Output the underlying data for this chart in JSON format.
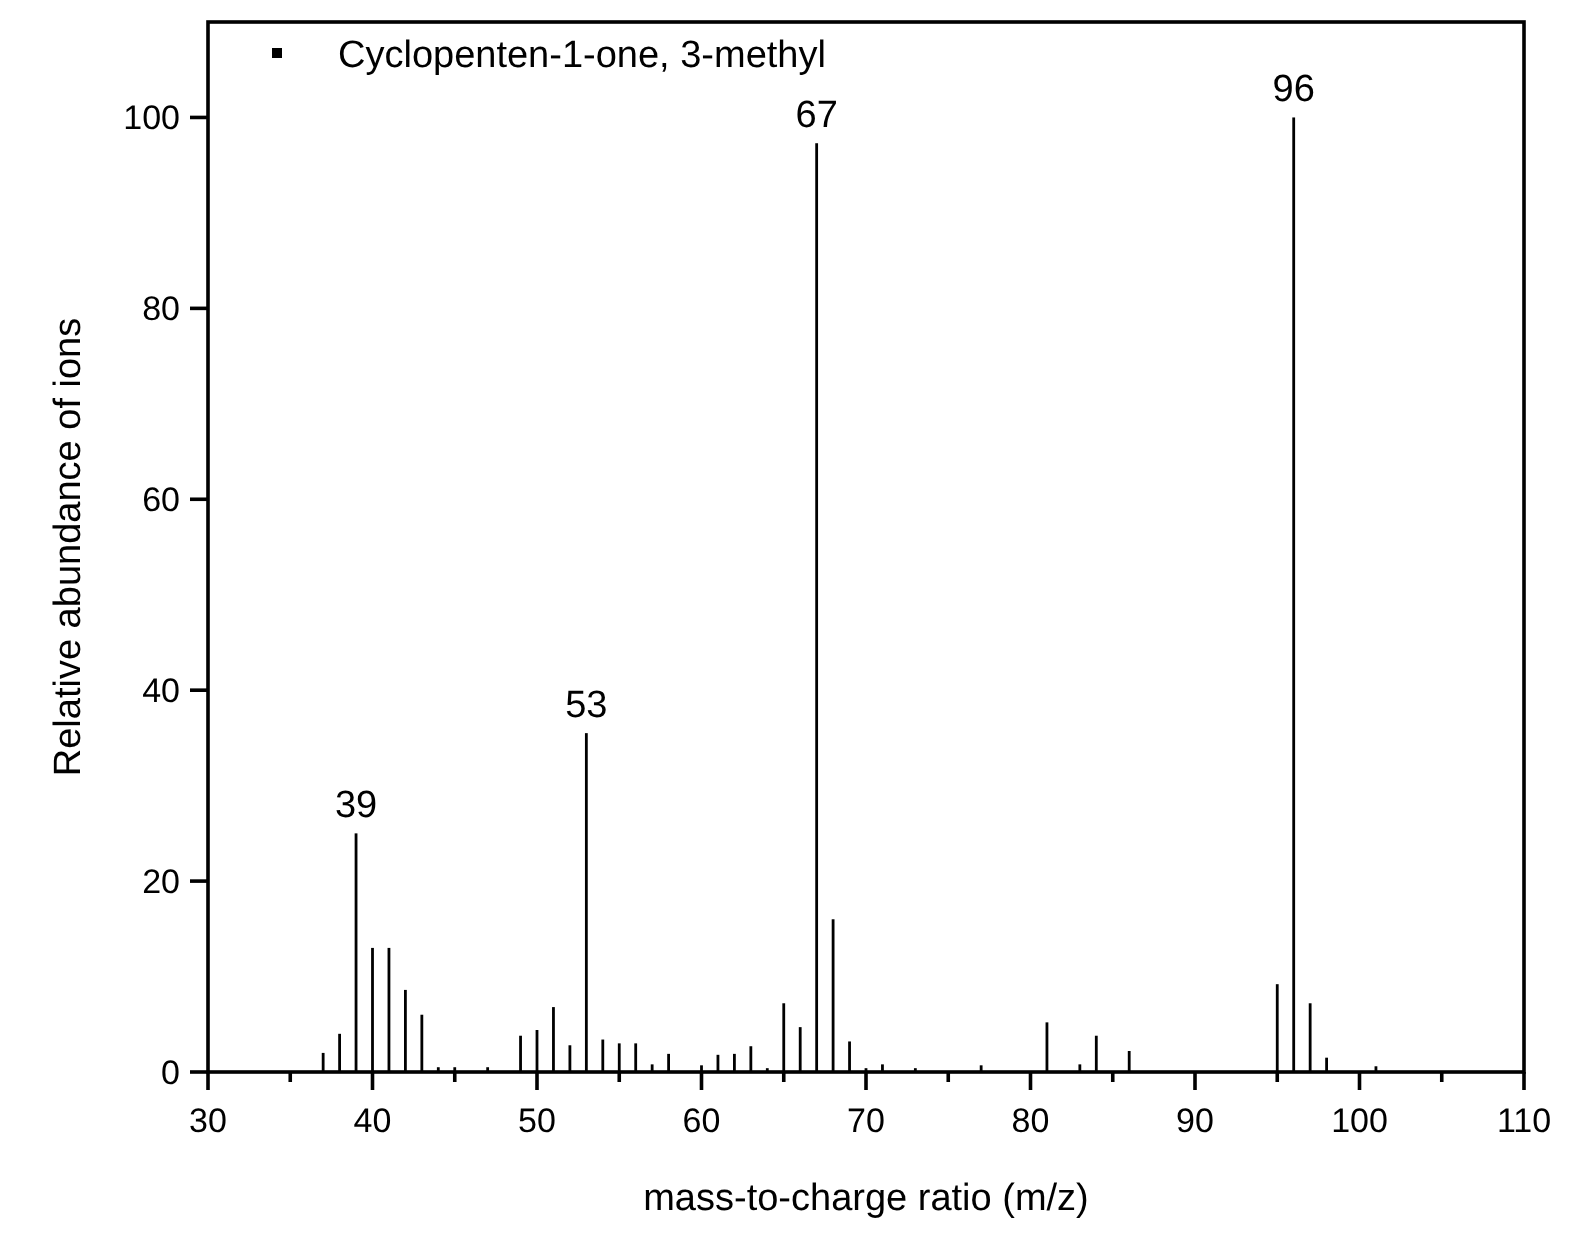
{
  "chart_data": {
    "type": "bar",
    "xlabel": "mass-to-charge ratio (m/z)",
    "ylabel": "Relative abundance of ions",
    "x": [
      37,
      38,
      39,
      40,
      41,
      42,
      43,
      44,
      45,
      47,
      49,
      50,
      51,
      52,
      53,
      54,
      55,
      56,
      57,
      58,
      60,
      61,
      62,
      63,
      64,
      65,
      66,
      67,
      68,
      69,
      70,
      71,
      73,
      77,
      81,
      83,
      84,
      86,
      95,
      96,
      97,
      98,
      101
    ],
    "series": [
      {
        "name": "Cyclopenten-1-one, 3-methyl",
        "color": "#000000",
        "values": [
          2,
          4,
          25,
          13,
          13,
          8.6,
          6,
          0.5,
          0.5,
          0.5,
          3.8,
          4.4,
          6.8,
          2.8,
          35.5,
          3.4,
          3,
          3,
          0.8,
          1.9,
          0.7,
          1.8,
          1.9,
          2.7,
          0.4,
          7.2,
          4.7,
          97.3,
          16,
          3.2,
          0.4,
          0.8,
          0.4,
          0.7,
          5.2,
          0.8,
          3.8,
          2.2,
          9.2,
          100,
          7.2,
          1.5,
          0.6
        ]
      }
    ],
    "xlim": [
      30,
      110
    ],
    "xticks": [
      30,
      {
        "value": 35,
        "label": null
      },
      40,
      {
        "value": 45,
        "label": null
      },
      50,
      {
        "value": 55,
        "label": null
      },
      60,
      {
        "value": 65,
        "label": null
      },
      70,
      {
        "value": 75,
        "label": null
      },
      80,
      {
        "value": 85,
        "label": null
      },
      90,
      {
        "value": 95,
        "label": null
      },
      100,
      {
        "value": 105,
        "label": null
      },
      110
    ],
    "ylim": [
      0,
      110
    ],
    "yticks": [
      0,
      20,
      40,
      60,
      80,
      100
    ],
    "annotations": [
      {
        "text": "39",
        "x": 39,
        "y": 25
      },
      {
        "text": "53",
        "x": 53,
        "y": 35.5
      },
      {
        "text": "67",
        "x": 67,
        "y": 97.3
      },
      {
        "text": "96",
        "x": 96,
        "y": 100
      }
    ],
    "legend": "top left",
    "grid": false
  }
}
